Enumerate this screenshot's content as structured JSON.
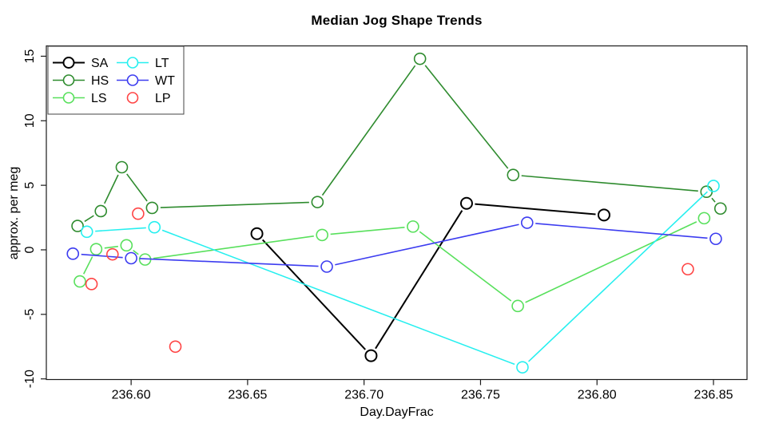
{
  "title": "Median Jog Shape Trends",
  "chart_data": {
    "type": "line",
    "title": "Median Jog Shape Trends",
    "xlabel": "Day.DayFrac",
    "ylabel": "approx. per meg",
    "xlim": [
      236.5636,
      236.8644
    ],
    "ylim": [
      -10.05,
      15.8
    ],
    "xticks": [
      236.6,
      236.65,
      236.7,
      236.75,
      236.8,
      236.85
    ],
    "xtick_labels": [
      "236.60",
      "236.65",
      "236.70",
      "236.75",
      "236.80",
      "236.85"
    ],
    "yticks": [
      -10,
      -5,
      0,
      5,
      10,
      15
    ],
    "ytick_labels": [
      "-10",
      "-5",
      "0",
      "5",
      "10",
      "15"
    ],
    "grid": false,
    "marker": "open-circle",
    "legend_position": "top-left",
    "series": [
      {
        "name": "SA",
        "color": "#000000",
        "line": true,
        "points": [
          [
            236.654,
            1.25
          ],
          [
            236.703,
            -8.2
          ],
          [
            236.744,
            3.6
          ],
          [
            236.803,
            2.7
          ]
        ]
      },
      {
        "name": "HS",
        "color": "#2e8b2e",
        "line": true,
        "points": [
          [
            236.577,
            1.85
          ],
          [
            236.587,
            3.0
          ],
          [
            236.596,
            6.4
          ],
          [
            236.609,
            3.25
          ],
          [
            236.68,
            3.7
          ],
          [
            236.724,
            14.8
          ],
          [
            236.764,
            5.8
          ],
          [
            236.847,
            4.5
          ],
          [
            236.853,
            3.2
          ]
        ]
      },
      {
        "name": "LS",
        "color": "#58e05c",
        "line": true,
        "points": [
          [
            236.578,
            -2.45
          ],
          [
            236.585,
            0.05
          ],
          [
            236.598,
            0.35
          ],
          [
            236.606,
            -0.75
          ],
          [
            236.682,
            1.15
          ],
          [
            236.721,
            1.8
          ],
          [
            236.766,
            -4.35
          ],
          [
            236.846,
            2.45
          ]
        ]
      },
      {
        "name": "LT",
        "color": "#26efef",
        "line": true,
        "points": [
          [
            236.581,
            1.4
          ],
          [
            236.61,
            1.75
          ],
          [
            236.768,
            -9.1
          ],
          [
            236.85,
            4.95
          ]
        ]
      },
      {
        "name": "WT",
        "color": "#3c3cf0",
        "line": true,
        "points": [
          [
            236.575,
            -0.3
          ],
          [
            236.6,
            -0.65
          ],
          [
            236.684,
            -1.3
          ],
          [
            236.77,
            2.1
          ],
          [
            236.851,
            0.85
          ]
        ]
      },
      {
        "name": "LP",
        "color": "#ff4545",
        "line": false,
        "points": [
          [
            236.583,
            -2.65
          ],
          [
            236.592,
            -0.35
          ],
          [
            236.603,
            2.8
          ],
          [
            236.619,
            -7.5
          ],
          [
            236.839,
            -1.5
          ]
        ]
      }
    ],
    "legend": {
      "labels": [
        "SA",
        "HS",
        "LS",
        "LT",
        "WT",
        "LP"
      ]
    }
  }
}
